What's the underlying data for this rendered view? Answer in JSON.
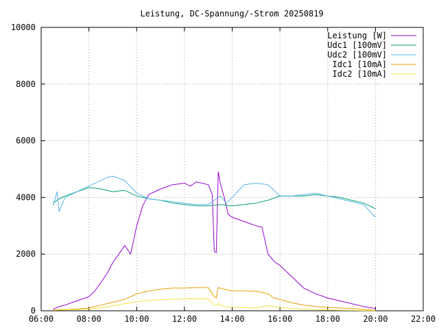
{
  "chart_data": {
    "type": "line",
    "title": "Leistung, DC-Spannung/-Strom 20250819",
    "xlabel": "",
    "ylabel": "",
    "xlim": [
      "06:00",
      "22:00"
    ],
    "ylim": [
      0,
      10000
    ],
    "x_ticks": [
      "06:00",
      "08:00",
      "10:00",
      "12:00",
      "14:00",
      "16:00",
      "18:00",
      "20:00",
      "22:00"
    ],
    "y_ticks": [
      "0",
      "2000",
      "4000",
      "6000",
      "8000",
      "10000"
    ],
    "grid": true,
    "legend_position": "top-right",
    "series": [
      {
        "name": "Leistung [W]",
        "color": "#9400d3",
        "points": [
          [
            "06:30",
            50
          ],
          [
            "06:45",
            150
          ],
          [
            "07:00",
            200
          ],
          [
            "07:30",
            350
          ],
          [
            "08:00",
            500
          ],
          [
            "08:15",
            700
          ],
          [
            "08:30",
            1000
          ],
          [
            "08:45",
            1300
          ],
          [
            "09:00",
            1700
          ],
          [
            "09:15",
            2000
          ],
          [
            "09:30",
            2300
          ],
          [
            "09:45",
            2000
          ],
          [
            "10:00",
            3000
          ],
          [
            "10:15",
            3700
          ],
          [
            "10:30",
            4100
          ],
          [
            "11:00",
            4300
          ],
          [
            "11:30",
            4450
          ],
          [
            "12:00",
            4500
          ],
          [
            "12:15",
            4400
          ],
          [
            "12:30",
            4550
          ],
          [
            "13:00",
            4450
          ],
          [
            "13:10",
            4100
          ],
          [
            "13:15",
            2100
          ],
          [
            "13:20",
            2050
          ],
          [
            "13:25",
            4900
          ],
          [
            "13:30",
            4500
          ],
          [
            "13:40",
            4000
          ],
          [
            "13:50",
            3400
          ],
          [
            "14:00",
            3300
          ],
          [
            "14:30",
            3150
          ],
          [
            "15:00",
            3000
          ],
          [
            "15:15",
            2950
          ],
          [
            "15:30",
            2000
          ],
          [
            "15:45",
            1750
          ],
          [
            "16:00",
            1600
          ],
          [
            "16:30",
            1200
          ],
          [
            "17:00",
            800
          ],
          [
            "17:30",
            600
          ],
          [
            "18:00",
            450
          ],
          [
            "18:30",
            350
          ],
          [
            "19:00",
            250
          ],
          [
            "19:30",
            150
          ],
          [
            "20:00",
            80
          ]
        ]
      },
      {
        "name": "Udc1 [100mV]",
        "color": "#009e73",
        "points": [
          [
            "06:30",
            3800
          ],
          [
            "06:45",
            3950
          ],
          [
            "07:00",
            4050
          ],
          [
            "07:30",
            4200
          ],
          [
            "08:00",
            4350
          ],
          [
            "08:30",
            4300
          ],
          [
            "09:00",
            4200
          ],
          [
            "09:30",
            4250
          ],
          [
            "10:00",
            4050
          ],
          [
            "10:30",
            3950
          ],
          [
            "11:00",
            3900
          ],
          [
            "11:30",
            3800
          ],
          [
            "12:00",
            3750
          ],
          [
            "12:30",
            3700
          ],
          [
            "13:00",
            3700
          ],
          [
            "13:30",
            3750
          ],
          [
            "14:00",
            3700
          ],
          [
            "14:30",
            3750
          ],
          [
            "15:00",
            3800
          ],
          [
            "15:30",
            3900
          ],
          [
            "16:00",
            4050
          ],
          [
            "16:30",
            4050
          ],
          [
            "17:00",
            4050
          ],
          [
            "17:30",
            4100
          ],
          [
            "18:00",
            4050
          ],
          [
            "18:30",
            4000
          ],
          [
            "19:00",
            3900
          ],
          [
            "19:30",
            3800
          ],
          [
            "20:00",
            3600
          ]
        ]
      },
      {
        "name": "Udc2 [100mV]",
        "color": "#56b4e9",
        "points": [
          [
            "06:30",
            3700
          ],
          [
            "06:40",
            4200
          ],
          [
            "06:45",
            3500
          ],
          [
            "07:00",
            4000
          ],
          [
            "07:30",
            4200
          ],
          [
            "08:00",
            4400
          ],
          [
            "08:30",
            4600
          ],
          [
            "08:45",
            4700
          ],
          [
            "09:00",
            4750
          ],
          [
            "09:30",
            4600
          ],
          [
            "10:00",
            4150
          ],
          [
            "10:30",
            3950
          ],
          [
            "11:00",
            3900
          ],
          [
            "11:30",
            3850
          ],
          [
            "12:00",
            3800
          ],
          [
            "12:30",
            3750
          ],
          [
            "13:00",
            3750
          ],
          [
            "13:15",
            3900
          ],
          [
            "13:30",
            4050
          ],
          [
            "13:45",
            3800
          ],
          [
            "14:00",
            4000
          ],
          [
            "14:30",
            4450
          ],
          [
            "15:00",
            4500
          ],
          [
            "15:30",
            4450
          ],
          [
            "16:00",
            4050
          ],
          [
            "16:30",
            4050
          ],
          [
            "17:00",
            4100
          ],
          [
            "17:30",
            4150
          ],
          [
            "18:00",
            4050
          ],
          [
            "18:30",
            3950
          ],
          [
            "19:00",
            3850
          ],
          [
            "19:30",
            3750
          ],
          [
            "20:00",
            3300
          ]
        ]
      },
      {
        "name": "Idc1 [10mA]",
        "color": "#e69f00",
        "points": [
          [
            "06:30",
            30
          ],
          [
            "07:00",
            40
          ],
          [
            "07:30",
            60
          ],
          [
            "08:00",
            100
          ],
          [
            "08:30",
            200
          ],
          [
            "09:00",
            300
          ],
          [
            "09:30",
            400
          ],
          [
            "10:00",
            600
          ],
          [
            "10:30",
            700
          ],
          [
            "11:00",
            760
          ],
          [
            "11:30",
            800
          ],
          [
            "12:00",
            800
          ],
          [
            "12:30",
            820
          ],
          [
            "13:00",
            820
          ],
          [
            "13:15",
            500
          ],
          [
            "13:20",
            450
          ],
          [
            "13:25",
            820
          ],
          [
            "13:40",
            760
          ],
          [
            "14:00",
            700
          ],
          [
            "14:30",
            700
          ],
          [
            "15:00",
            690
          ],
          [
            "15:30",
            600
          ],
          [
            "15:45",
            450
          ],
          [
            "16:00",
            400
          ],
          [
            "16:30",
            280
          ],
          [
            "17:00",
            200
          ],
          [
            "17:30",
            150
          ],
          [
            "18:00",
            120
          ],
          [
            "18:30",
            100
          ],
          [
            "19:00",
            80
          ],
          [
            "19:30",
            50
          ],
          [
            "20:00",
            20
          ]
        ]
      },
      {
        "name": "Idc2 [10mA]",
        "color": "#f0e442",
        "points": [
          [
            "06:30",
            20
          ],
          [
            "07:00",
            30
          ],
          [
            "07:30",
            40
          ],
          [
            "08:00",
            60
          ],
          [
            "08:30",
            100
          ],
          [
            "09:00",
            180
          ],
          [
            "09:30",
            250
          ],
          [
            "10:00",
            320
          ],
          [
            "10:30",
            370
          ],
          [
            "11:00",
            390
          ],
          [
            "11:30",
            410
          ],
          [
            "12:00",
            420
          ],
          [
            "12:30",
            420
          ],
          [
            "13:00",
            420
          ],
          [
            "13:15",
            200
          ],
          [
            "13:20",
            180
          ],
          [
            "13:25",
            250
          ],
          [
            "13:40",
            150
          ],
          [
            "14:00",
            120
          ],
          [
            "14:30",
            110
          ],
          [
            "15:00",
            100
          ],
          [
            "15:30",
            180
          ],
          [
            "16:00",
            120
          ],
          [
            "16:30",
            80
          ],
          [
            "17:00",
            60
          ],
          [
            "17:30",
            40
          ],
          [
            "18:00",
            30
          ],
          [
            "18:30",
            20
          ],
          [
            "19:00",
            15
          ],
          [
            "19:30",
            10
          ],
          [
            "20:00",
            5
          ]
        ]
      }
    ]
  }
}
